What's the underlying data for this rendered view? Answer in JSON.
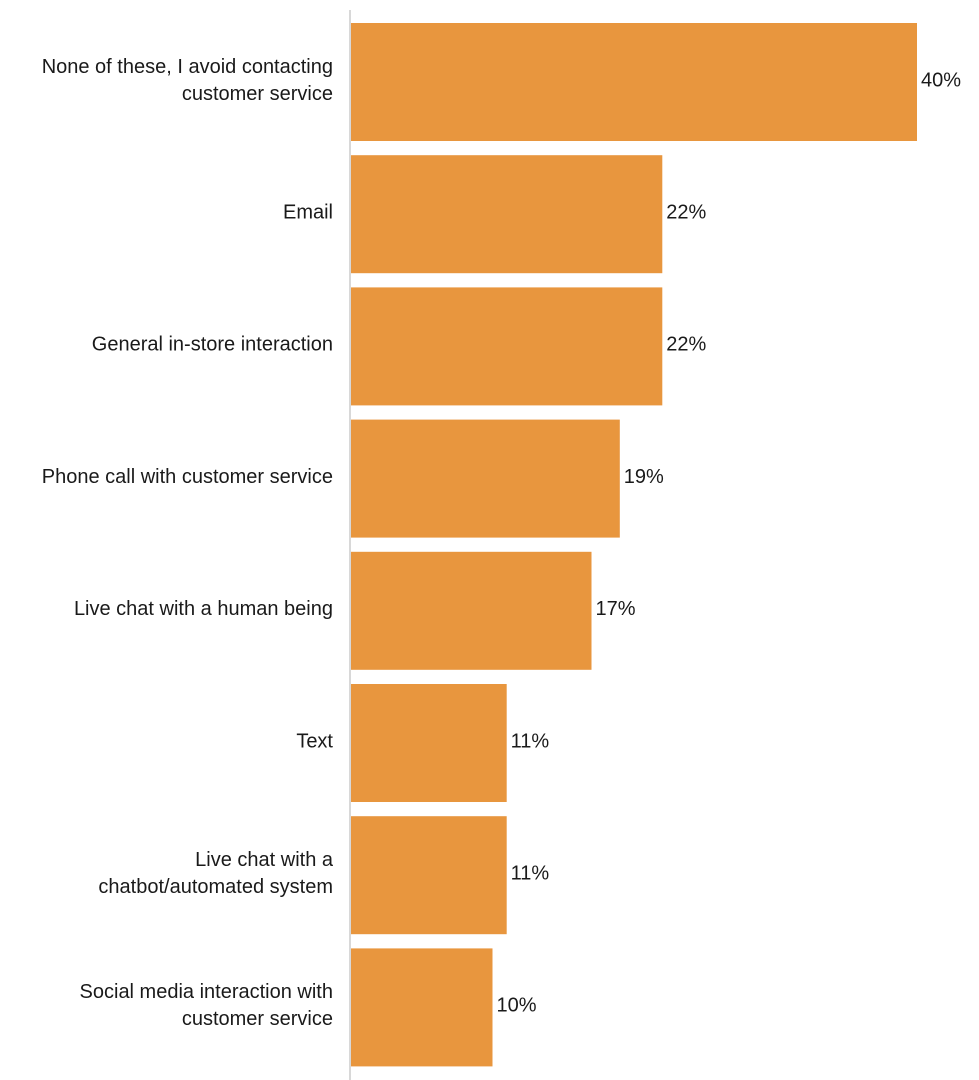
{
  "chart_data": {
    "type": "bar",
    "orientation": "horizontal",
    "categories": [
      [
        "None of these, I avoid contacting",
        "customer service"
      ],
      [
        "Email"
      ],
      [
        "General in-store interaction"
      ],
      [
        "Phone call with customer service"
      ],
      [
        "Live chat with a human being"
      ],
      [
        "Text"
      ],
      [
        "Live chat with a",
        "chatbot/automated system"
      ],
      [
        "Social media interaction with",
        "customer service"
      ]
    ],
    "values": [
      40,
      22,
      22,
      19,
      17,
      11,
      11,
      10
    ],
    "value_labels": [
      "40%",
      "22%",
      "22%",
      "19%",
      "17%",
      "11%",
      "11%",
      "10%"
    ],
    "unit": "%",
    "xlim": [
      0,
      40
    ],
    "grid": false,
    "legend": "none",
    "bar_color": "#E8963E",
    "axis_color": "#cccccc"
  }
}
